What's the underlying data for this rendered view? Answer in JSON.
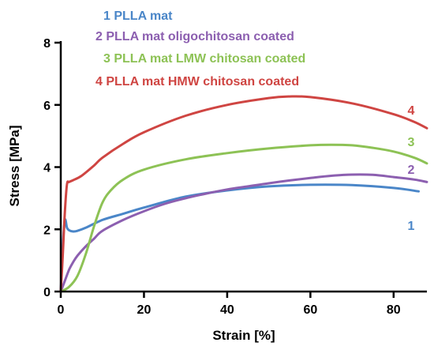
{
  "chart_data": {
    "type": "line",
    "xlabel": "Strain [%]",
    "ylabel": "Stress [MPa]",
    "xlim": [
      0,
      88
    ],
    "ylim": [
      0,
      8
    ],
    "xticks": [
      "0",
      "20",
      "40",
      "60",
      "80"
    ],
    "yticks": [
      "0",
      "2",
      "4",
      "6",
      "8"
    ],
    "grid": false,
    "legend_position": "top",
    "series": [
      {
        "name": "1 PLLA mat",
        "end_label": "1",
        "color": "#4a86c8",
        "x": [
          0,
          0.5,
          1,
          1.5,
          2,
          3,
          4,
          6,
          10,
          15,
          20,
          30,
          40,
          50,
          60,
          70,
          80,
          86
        ],
        "y": [
          0,
          1.5,
          2.3,
          2.05,
          1.97,
          1.93,
          1.95,
          2.05,
          2.3,
          2.5,
          2.7,
          3.05,
          3.25,
          3.38,
          3.43,
          3.42,
          3.33,
          3.22
        ]
      },
      {
        "name": "2 PLLA mat oligochitosan coated",
        "end_label": "2",
        "color": "#8c5fb0",
        "x": [
          0,
          1,
          2,
          3,
          4,
          6,
          8,
          10,
          15,
          20,
          25,
          30,
          35,
          40,
          45,
          50,
          55,
          60,
          65,
          70,
          75,
          80,
          85,
          88
        ],
        "y": [
          0,
          0.35,
          0.7,
          0.95,
          1.15,
          1.45,
          1.7,
          1.95,
          2.3,
          2.58,
          2.82,
          3.0,
          3.15,
          3.28,
          3.38,
          3.48,
          3.57,
          3.65,
          3.72,
          3.76,
          3.75,
          3.68,
          3.6,
          3.52
        ]
      },
      {
        "name": "3 PLLA mat LMW chitosan coated",
        "end_label": "3",
        "color": "#8dc255",
        "x": [
          0,
          2,
          4,
          6,
          8,
          10,
          12,
          15,
          20,
          30,
          40,
          50,
          60,
          65,
          70,
          75,
          80,
          85,
          88
        ],
        "y": [
          0,
          0.15,
          0.5,
          1.2,
          2.1,
          2.85,
          3.25,
          3.6,
          3.92,
          4.25,
          4.45,
          4.6,
          4.7,
          4.72,
          4.7,
          4.62,
          4.5,
          4.3,
          4.12
        ]
      },
      {
        "name": "4 PLLA mat HMW chitosan coated",
        "end_label": "4",
        "color": "#cf4542",
        "x": [
          0,
          0.5,
          1,
          1.5,
          2,
          3,
          5,
          8,
          10,
          15,
          20,
          30,
          40,
          50,
          55,
          60,
          70,
          80,
          85,
          88
        ],
        "y": [
          0,
          1.2,
          2.6,
          3.45,
          3.52,
          3.58,
          3.72,
          4.05,
          4.3,
          4.75,
          5.12,
          5.65,
          6.0,
          6.22,
          6.27,
          6.25,
          6.05,
          5.7,
          5.45,
          5.25
        ]
      }
    ]
  }
}
